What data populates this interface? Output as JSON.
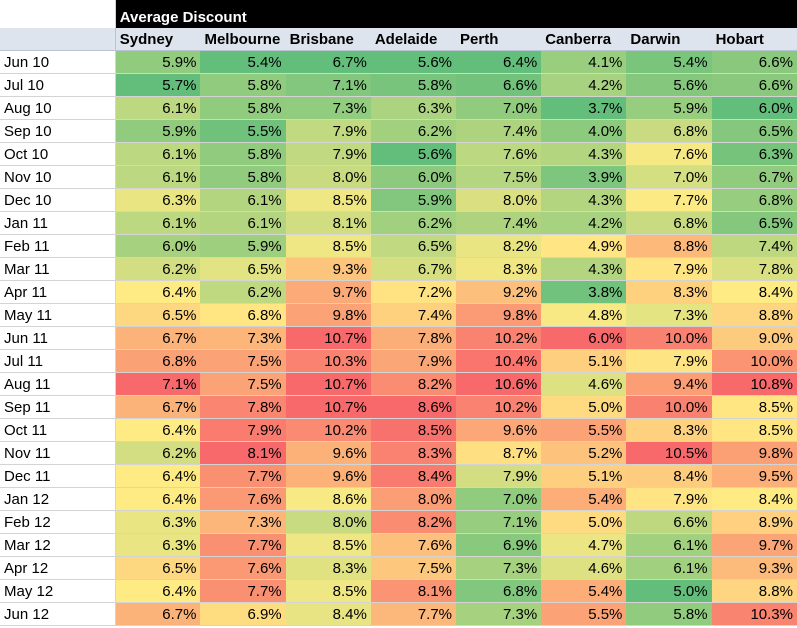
{
  "chart_data": {
    "type": "heatmap",
    "title": "Average Discount",
    "columns": [
      "Sydney",
      "Melbourne",
      "Brisbane",
      "Adelaide",
      "Perth",
      "Canberra",
      "Darwin",
      "Hobart"
    ],
    "rows": [
      "Jun 10",
      "Jul 10",
      "Aug 10",
      "Sep 10",
      "Oct 10",
      "Nov 10",
      "Dec 10",
      "Jan 11",
      "Feb 11",
      "Mar 11",
      "Apr 11",
      "May 11",
      "Jun 11",
      "Jul 11",
      "Aug 11",
      "Sep 11",
      "Oct 11",
      "Nov 11",
      "Dec 11",
      "Jan 12",
      "Feb 12",
      "Mar 12",
      "Apr 12",
      "May 12",
      "Jun 12"
    ],
    "values": [
      [
        5.9,
        5.4,
        6.7,
        5.6,
        6.4,
        4.1,
        5.4,
        6.6
      ],
      [
        5.7,
        5.8,
        7.1,
        5.8,
        6.6,
        4.2,
        5.6,
        6.6
      ],
      [
        6.1,
        5.8,
        7.3,
        6.3,
        7.0,
        3.7,
        5.9,
        6.0
      ],
      [
        5.9,
        5.5,
        7.9,
        6.2,
        7.4,
        4.0,
        6.8,
        6.5
      ],
      [
        6.1,
        5.8,
        7.9,
        5.6,
        7.6,
        4.3,
        7.6,
        6.3
      ],
      [
        6.1,
        5.8,
        8.0,
        6.0,
        7.5,
        3.9,
        7.0,
        6.7
      ],
      [
        6.3,
        6.1,
        8.5,
        5.9,
        8.0,
        4.3,
        7.7,
        6.8
      ],
      [
        6.1,
        6.1,
        8.1,
        6.2,
        7.4,
        4.2,
        6.8,
        6.5
      ],
      [
        6.0,
        5.9,
        8.5,
        6.5,
        8.2,
        4.9,
        8.8,
        7.4
      ],
      [
        6.2,
        6.5,
        9.3,
        6.7,
        8.3,
        4.3,
        7.9,
        7.8
      ],
      [
        6.4,
        6.2,
        9.7,
        7.2,
        9.2,
        3.8,
        8.3,
        8.4
      ],
      [
        6.5,
        6.8,
        9.8,
        7.4,
        9.8,
        4.8,
        7.3,
        8.8
      ],
      [
        6.7,
        7.3,
        10.7,
        7.8,
        10.2,
        6.0,
        10.0,
        9.0
      ],
      [
        6.8,
        7.5,
        10.3,
        7.9,
        10.4,
        5.1,
        7.9,
        10.0
      ],
      [
        7.1,
        7.5,
        10.7,
        8.2,
        10.6,
        4.6,
        9.4,
        10.8
      ],
      [
        6.7,
        7.8,
        10.7,
        8.6,
        10.2,
        5.0,
        10.0,
        8.5
      ],
      [
        6.4,
        7.9,
        10.2,
        8.5,
        9.6,
        5.5,
        8.3,
        8.5
      ],
      [
        6.2,
        8.1,
        9.6,
        8.3,
        8.7,
        5.2,
        10.5,
        9.8
      ],
      [
        6.4,
        7.7,
        9.6,
        8.4,
        7.9,
        5.1,
        8.4,
        9.5
      ],
      [
        6.4,
        7.6,
        8.6,
        8.0,
        7.0,
        5.4,
        7.9,
        8.4
      ],
      [
        6.3,
        7.3,
        8.0,
        8.2,
        7.1,
        5.0,
        6.6,
        8.9
      ],
      [
        6.3,
        7.7,
        8.5,
        7.6,
        6.9,
        4.7,
        6.1,
        9.7
      ],
      [
        6.5,
        7.6,
        8.3,
        7.5,
        7.3,
        4.6,
        6.1,
        9.3
      ],
      [
        6.4,
        7.7,
        8.5,
        8.1,
        6.8,
        5.4,
        5.0,
        8.8
      ],
      [
        6.7,
        6.9,
        8.4,
        7.7,
        7.3,
        5.5,
        5.8,
        10.3
      ]
    ],
    "value_format": "percent_1dp",
    "color_scale": "per_column",
    "colors": {
      "low": "#63be7b",
      "mid": "#ffeb84",
      "high": "#f8696b"
    }
  }
}
